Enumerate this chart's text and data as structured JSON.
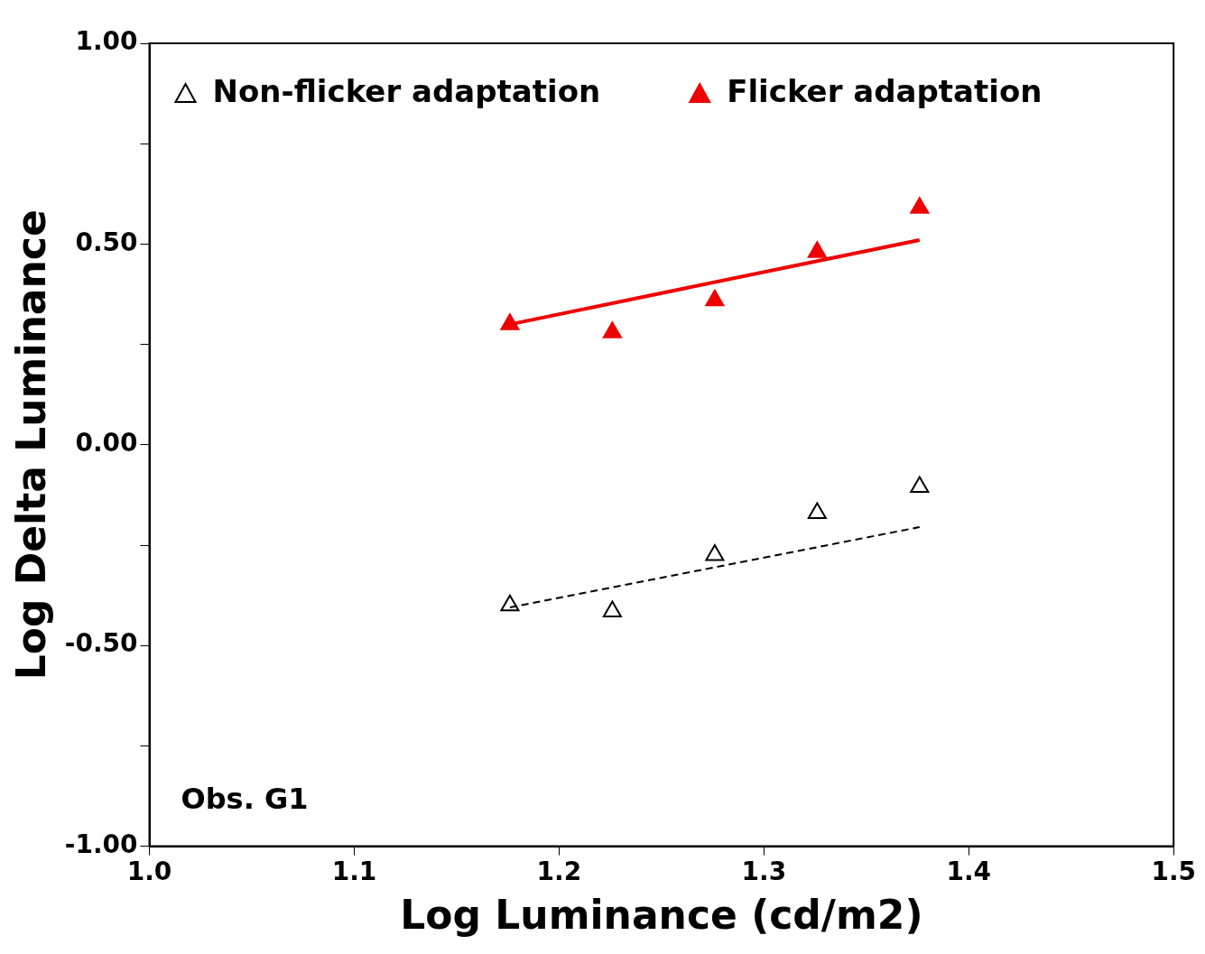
{
  "chart_data": {
    "type": "scatter",
    "xlabel": "Log Luminance (cd/m2)",
    "ylabel": "Log Delta Luminance",
    "xlim": [
      1.0,
      1.5
    ],
    "ylim": [
      -1.0,
      1.0
    ],
    "xticks": [
      {
        "value": 1.0,
        "label": "1.0"
      },
      {
        "value": 1.1,
        "label": "1.1"
      },
      {
        "value": 1.2,
        "label": "1.2"
      },
      {
        "value": 1.3,
        "label": "1.3"
      },
      {
        "value": 1.4,
        "label": "1.4"
      },
      {
        "value": 1.5,
        "label": "1.5"
      }
    ],
    "yticks": [
      {
        "value": -1.0,
        "label": "-1.00"
      },
      {
        "value": -0.75,
        "label": null
      },
      {
        "value": -0.5,
        "label": "-0.50"
      },
      {
        "value": -0.25,
        "label": null
      },
      {
        "value": 0,
        "label": "0.00"
      },
      {
        "value": 0.25,
        "label": null
      },
      {
        "value": 0.5,
        "label": "0.50"
      },
      {
        "value": 0.75,
        "label": null
      },
      {
        "value": 1.0,
        "label": "1.00"
      }
    ],
    "grid": false,
    "legend": "top left",
    "annotations": [
      "Obs. G1"
    ],
    "series": [
      {
        "name": "Non-flicker adaptation",
        "marker": "triangle",
        "color": "#000000",
        "x": [
          1.176,
          1.226,
          1.276,
          1.326,
          1.376
        ],
        "values": [
          -0.4,
          -0.415,
          -0.275,
          -0.17,
          -0.105
        ]
      },
      {
        "name": "Flicker adaptation",
        "marker": "triangle",
        "color": "#ee0000",
        "x": [
          1.176,
          1.226,
          1.276,
          1.326,
          1.376
        ],
        "values": [
          0.3,
          0.28,
          0.36,
          0.48,
          0.59
        ]
      },
      {
        "type": "line",
        "marker": "none",
        "color": "#000000",
        "line_style": "dashed",
        "x": [
          1.176,
          1.376
        ],
        "values": [
          -0.405,
          -0.205
        ]
      },
      {
        "type": "line",
        "marker": "none",
        "color": "#ee0000",
        "line_style": "solid",
        "x": [
          1.176,
          1.376
        ],
        "values": [
          0.3,
          0.51
        ]
      }
    ]
  }
}
